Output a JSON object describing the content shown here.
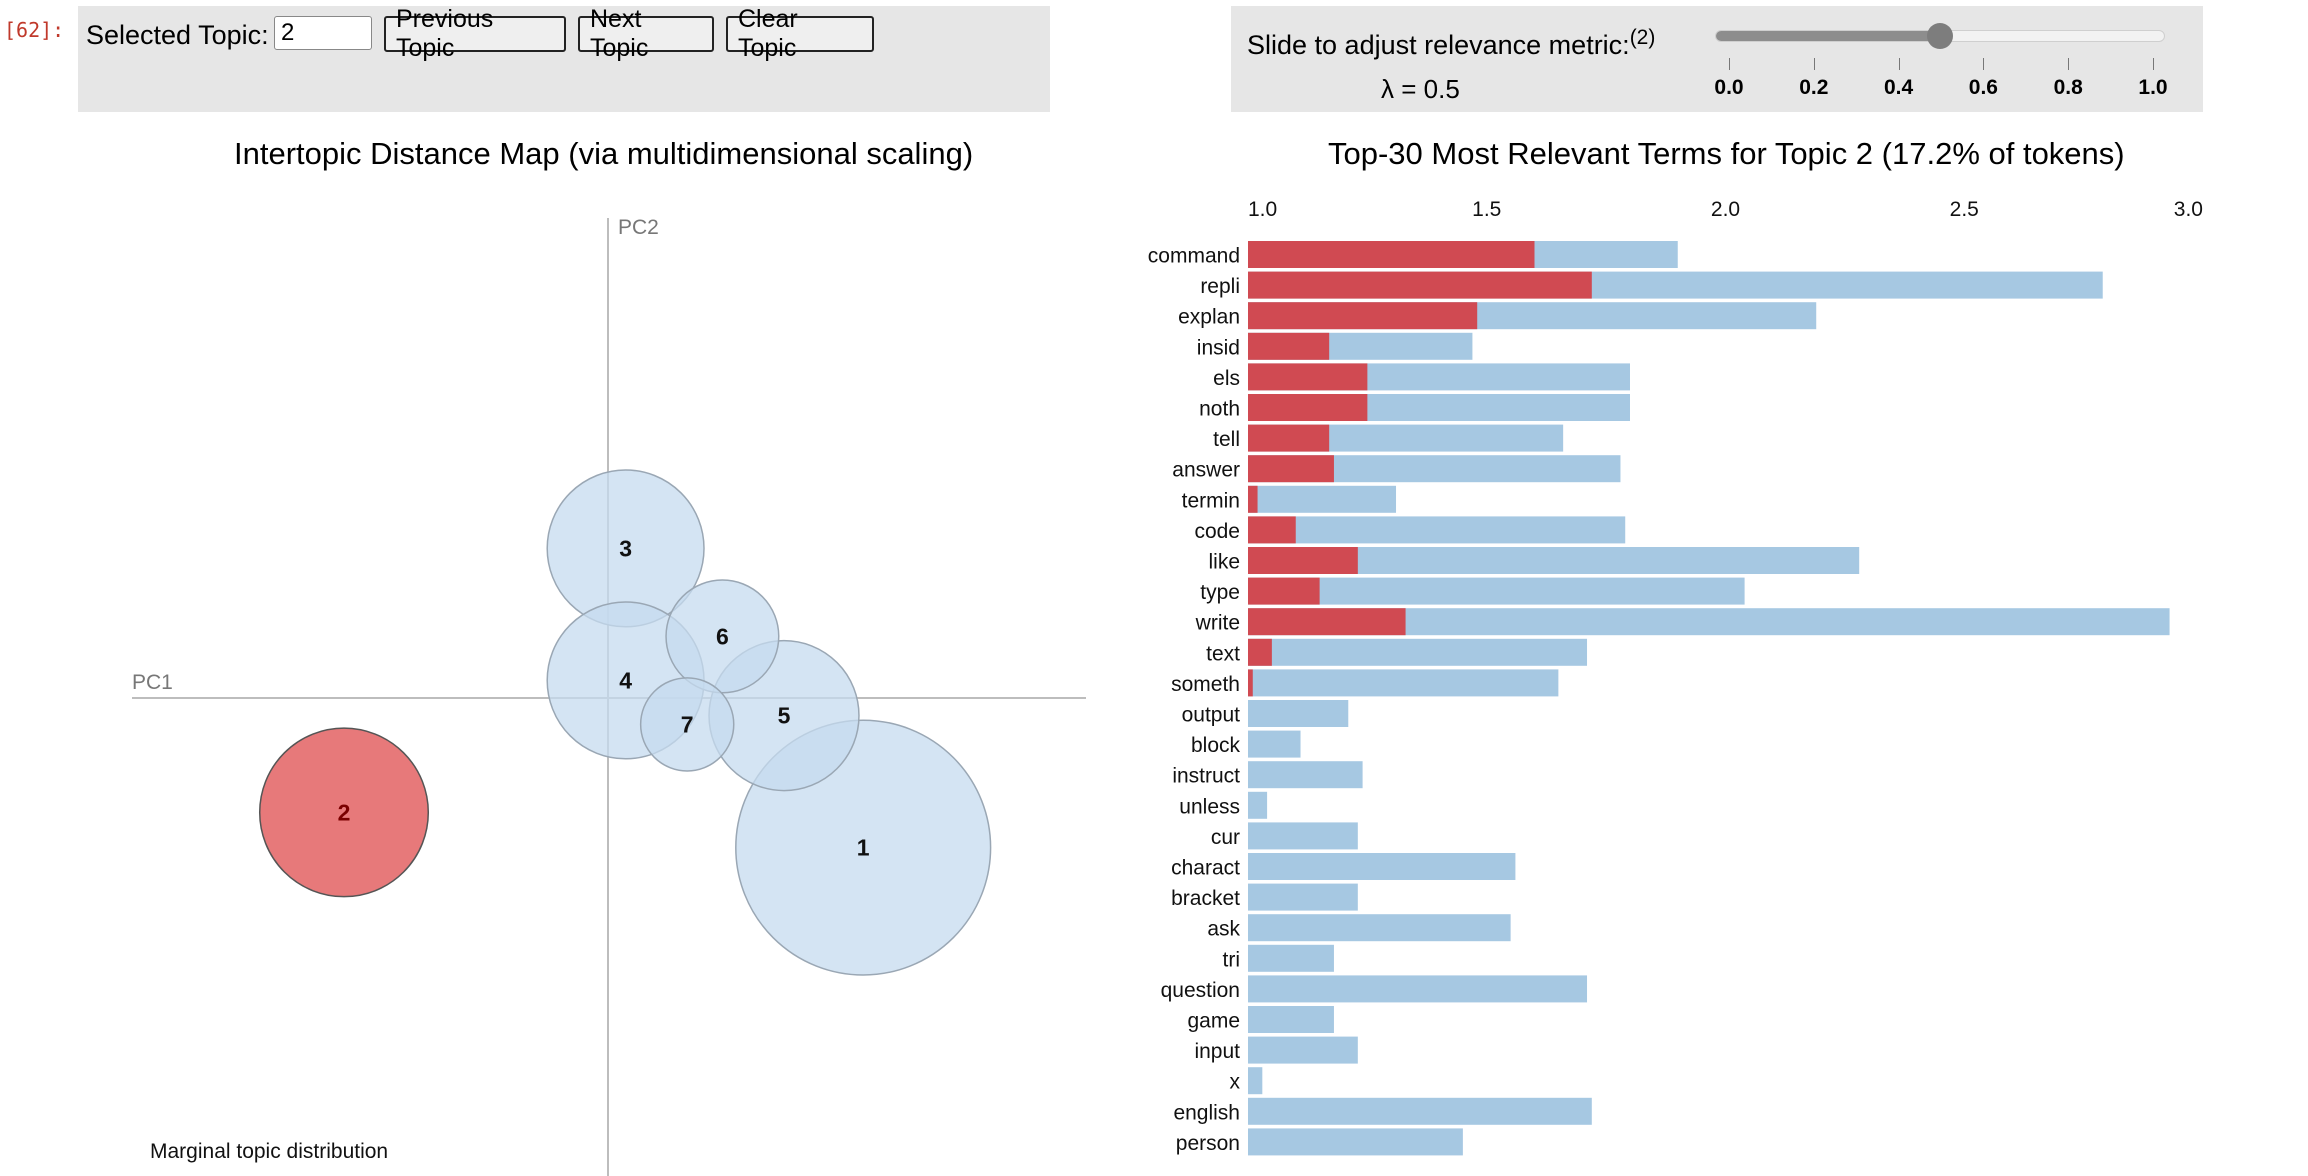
{
  "notebook": {
    "prompt": "[62]:"
  },
  "controls": {
    "topic_label": "Selected Topic:",
    "topic_value": "2",
    "prev_label": "Previous Topic",
    "next_label": "Next Topic",
    "clear_label": "Clear Topic"
  },
  "slider": {
    "label": "Slide to adjust relevance metric:",
    "superscript": "(2)",
    "lambda_text": "λ = 0.5",
    "value": 0.5,
    "min": 0.0,
    "max": 1.0,
    "ticks": [
      "0.0",
      "0.2",
      "0.4",
      "0.6",
      "0.8",
      "1.0"
    ]
  },
  "colors": {
    "topic_default": "#c6dbef",
    "topic_selected": "#e15759",
    "bar_overall": "#a6c8e2",
    "bar_topic": "#d04a52",
    "panel_bg": "#e6e6e6"
  },
  "chart_data": [
    {
      "type": "scatter",
      "title": "Intertopic Distance Map (via multidimensional scaling)",
      "xlabel": "PC1",
      "ylabel": "PC2",
      "selected_topic": "2",
      "footer_label": "Marginal topic distribution",
      "points": [
        {
          "label": "1",
          "x": 0.29,
          "y": -0.17,
          "size": 0.26
        },
        {
          "label": "2",
          "x": -0.3,
          "y": -0.13,
          "size": 0.172
        },
        {
          "label": "3",
          "x": 0.02,
          "y": 0.17,
          "size": 0.16
        },
        {
          "label": "4",
          "x": 0.02,
          "y": 0.02,
          "size": 0.16
        },
        {
          "label": "5",
          "x": 0.2,
          "y": -0.02,
          "size": 0.153
        },
        {
          "label": "6",
          "x": 0.13,
          "y": 0.07,
          "size": 0.115
        },
        {
          "label": "7",
          "x": 0.09,
          "y": -0.03,
          "size": 0.095
        }
      ],
      "xlim": [
        -0.36,
        0.35
      ],
      "ylim": [
        -0.36,
        0.35
      ]
    },
    {
      "type": "bar",
      "orientation": "horizontal",
      "title": "Top-30 Most Relevant Terms for Topic 2 (17.2% of tokens)",
      "xlim": [
        1.0,
        3.0
      ],
      "xticks": [
        "1.0",
        "1.5",
        "2.0",
        "2.5",
        "3.0"
      ],
      "categories": [
        "command",
        "repli",
        "explan",
        "insid",
        "els",
        "noth",
        "tell",
        "answer",
        "termin",
        "code",
        "like",
        "type",
        "write",
        "text",
        "someth",
        "output",
        "block",
        "instruct",
        "unless",
        "cur",
        "charact",
        "bracket",
        "ask",
        "tri",
        "question",
        "game",
        "input",
        "x",
        "english",
        "person"
      ],
      "series": [
        {
          "values": [
            1.9,
            2.79,
            2.19,
            1.47,
            1.8,
            1.8,
            1.66,
            1.78,
            1.31,
            1.79,
            2.28,
            2.04,
            2.93,
            1.71,
            1.65,
            1.21,
            1.11,
            1.24,
            1.04,
            1.23,
            1.56,
            1.23,
            1.55,
            1.18,
            1.71,
            1.18,
            1.23,
            1.03,
            1.72,
            1.45
          ]
        },
        {
          "values": [
            1.6,
            1.72,
            1.48,
            1.17,
            1.25,
            1.25,
            1.17,
            1.18,
            1.02,
            1.1,
            1.23,
            1.15,
            1.33,
            1.05,
            1.01,
            1.0,
            1.0,
            1.0,
            1.0,
            1.0,
            1.0,
            1.0,
            1.0,
            1.0,
            1.0,
            1.0,
            1.0,
            1.0,
            1.0,
            1.0
          ]
        }
      ]
    }
  ]
}
